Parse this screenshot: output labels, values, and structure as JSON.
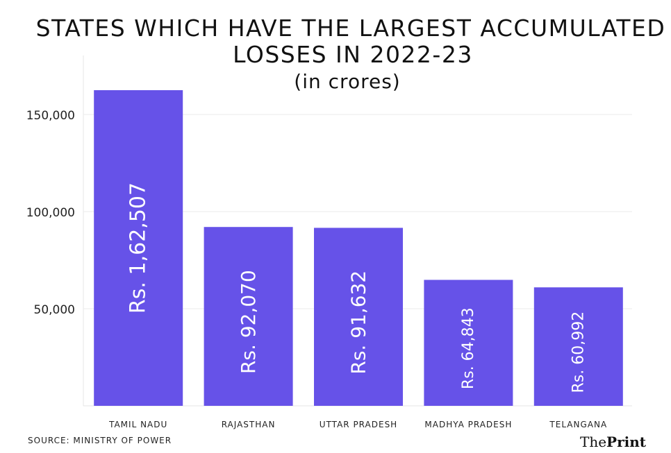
{
  "chart_data": {
    "type": "bar",
    "title_lines": [
      "STATES WHICH HAVE THE LARGEST ACCUMULATED",
      "LOSSES IN 2022-23"
    ],
    "subtitle": "(in crores)",
    "categories": [
      "TAMIL NADU",
      "RAJASTHAN",
      "UTTAR PRADESH",
      "MADHYA PRADESH",
      "TELANGANA"
    ],
    "values": [
      162507,
      92070,
      91632,
      64843,
      60992
    ],
    "data_labels": [
      "Rs. 1,62,507",
      "Rs. 92,070",
      "Rs. 91,632",
      "Rs. 64,843",
      "Rs. 60,992"
    ],
    "yticks": [
      50000,
      100000,
      150000
    ],
    "ytick_labels": [
      "50,000",
      "100,000",
      "150,000"
    ],
    "ylim": [
      0,
      175000
    ],
    "grid": true,
    "xlabel": "",
    "ylabel": "",
    "bar_color": "#6652e8"
  },
  "source": "SOURCE: MINISTRY OF POWER",
  "logo": {
    "part1": "The",
    "part2": "Print"
  }
}
